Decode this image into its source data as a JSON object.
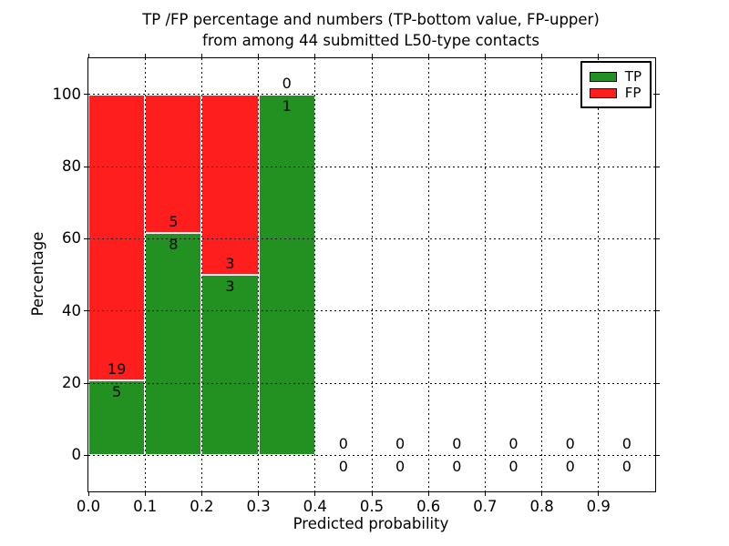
{
  "chart_data": {
    "type": "bar",
    "stacked": true,
    "title_line1": "TP /FP percentage and numbers (TP-bottom value, FP-upper)",
    "title_line2": "from among 44 submitted L50-type contacts",
    "xlabel": "Predicted probability",
    "ylabel": "Percentage",
    "xlim": [
      0.0,
      1.0
    ],
    "ylim": [
      -10,
      110
    ],
    "x_ticks": [
      "0.0",
      "0.1",
      "0.2",
      "0.3",
      "0.4",
      "0.5",
      "0.6",
      "0.7",
      "0.8",
      "0.9"
    ],
    "y_ticks": [
      0,
      20,
      40,
      60,
      80,
      100
    ],
    "bin_width": 0.1,
    "grid": "dotted",
    "total_contacts": 44,
    "bars": [
      {
        "x_start": 0.0,
        "tp_count": 5,
        "fp_count": 19,
        "tp_pct": 20.8,
        "fp_pct": 79.2
      },
      {
        "x_start": 0.1,
        "tp_count": 8,
        "fp_count": 5,
        "tp_pct": 61.5,
        "fp_pct": 38.5
      },
      {
        "x_start": 0.2,
        "tp_count": 3,
        "fp_count": 3,
        "tp_pct": 50.0,
        "fp_pct": 50.0
      },
      {
        "x_start": 0.3,
        "tp_count": 1,
        "fp_count": 0,
        "tp_pct": 100.0,
        "fp_pct": 0.0
      },
      {
        "x_start": 0.4,
        "tp_count": 0,
        "fp_count": 0,
        "tp_pct": 0.0,
        "fp_pct": 0.0
      },
      {
        "x_start": 0.5,
        "tp_count": 0,
        "fp_count": 0,
        "tp_pct": 0.0,
        "fp_pct": 0.0
      },
      {
        "x_start": 0.6,
        "tp_count": 0,
        "fp_count": 0,
        "tp_pct": 0.0,
        "fp_pct": 0.0
      },
      {
        "x_start": 0.7,
        "tp_count": 0,
        "fp_count": 0,
        "tp_pct": 0.0,
        "fp_pct": 0.0
      },
      {
        "x_start": 0.8,
        "tp_count": 0,
        "fp_count": 0,
        "tp_pct": 0.0,
        "fp_pct": 0.0
      },
      {
        "x_start": 0.9,
        "tp_count": 0,
        "fp_count": 0,
        "tp_pct": 0.0,
        "fp_pct": 0.0
      }
    ],
    "legend": {
      "position": "upper right",
      "entries": [
        {
          "label": "TP",
          "color": "#229122"
        },
        {
          "label": "FP",
          "color": "#fe1e1e"
        }
      ]
    },
    "colors": {
      "tp_green": "#229122",
      "fp_red": "#fe1e1e",
      "frame": "#000000",
      "background": "#ffffff"
    }
  }
}
